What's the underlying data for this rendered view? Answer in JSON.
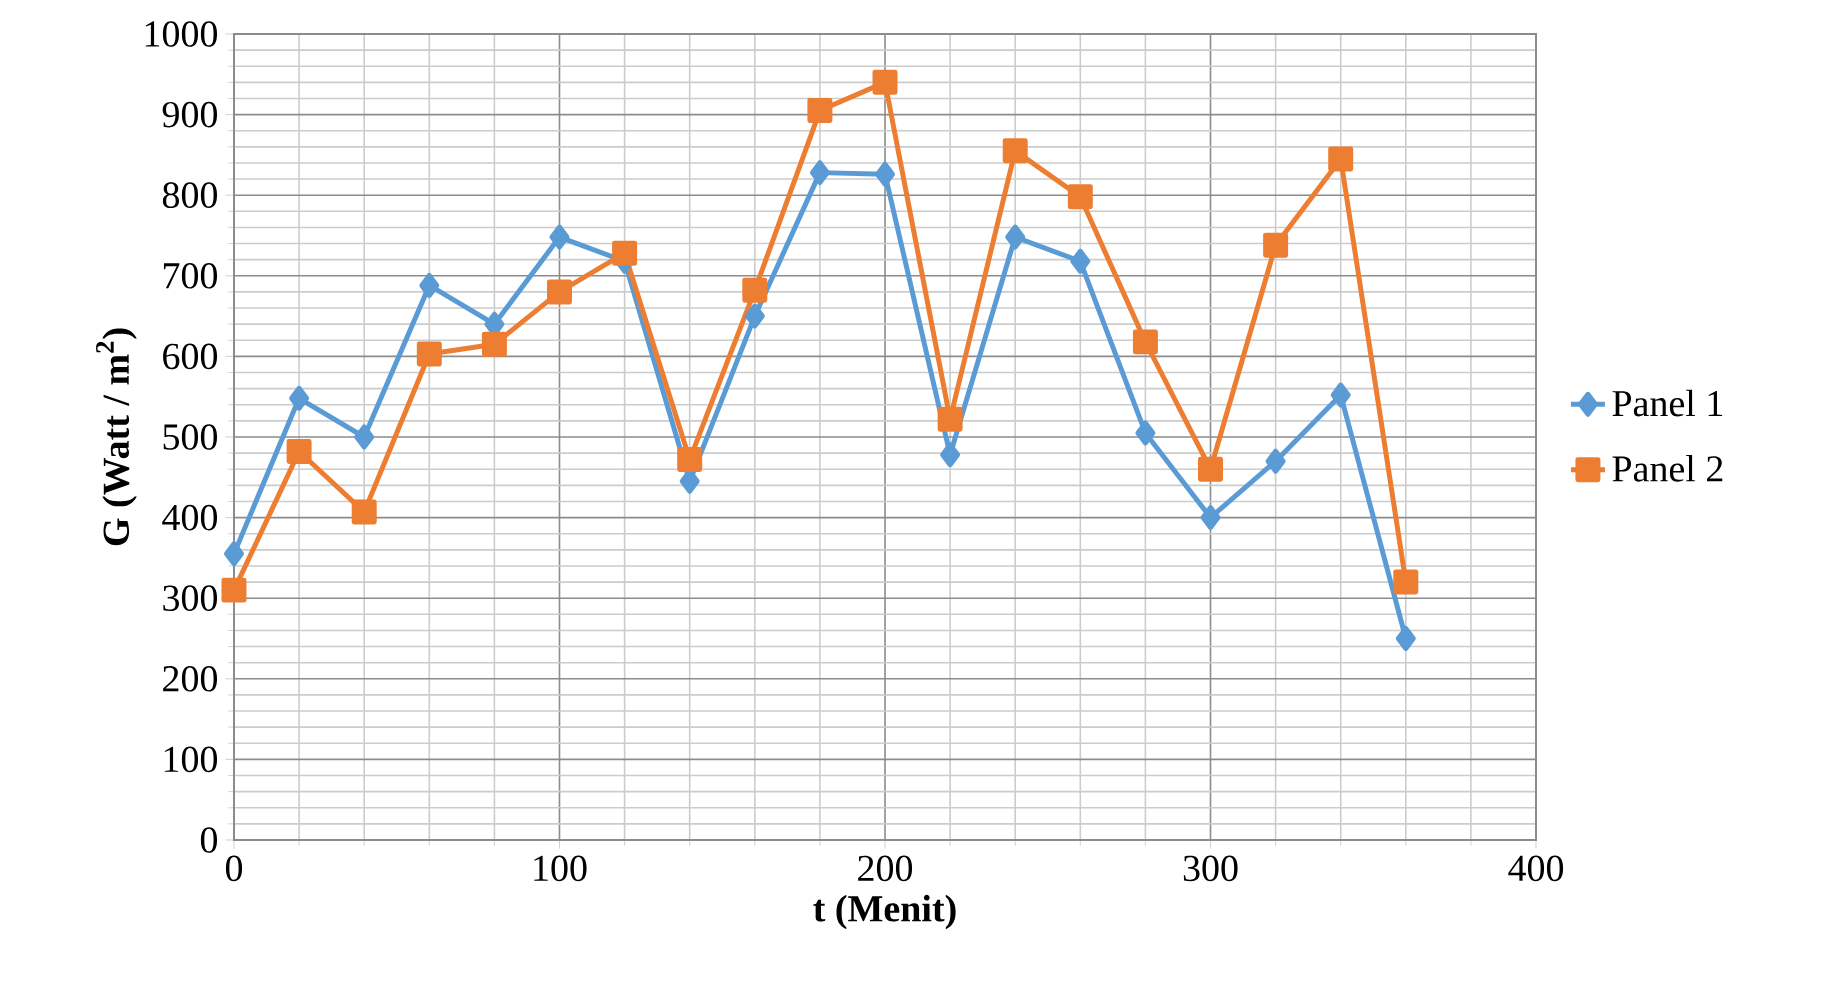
{
  "chart_data": {
    "type": "line",
    "xlabel": "t (Menit)",
    "ylabel": "G (Watt / m$^{2}$)",
    "x": [
      0,
      20,
      40,
      60,
      80,
      100,
      120,
      140,
      160,
      180,
      200,
      220,
      240,
      260,
      280,
      300,
      320,
      340,
      360
    ],
    "series": [
      {
        "name": "Panel 1",
        "color": "#5b9bd5",
        "marker": "diamond",
        "values": [
          355,
          548,
          500,
          688,
          640,
          748,
          718,
          445,
          650,
          828,
          826,
          478,
          748,
          718,
          505,
          400,
          470,
          552,
          250
        ]
      },
      {
        "name": "Panel 2",
        "color": "#ed7d31",
        "marker": "square",
        "values": [
          310,
          482,
          407,
          603,
          615,
          680,
          728,
          472,
          682,
          905,
          940,
          522,
          855,
          798,
          618,
          460,
          738,
          845,
          320
        ]
      }
    ],
    "xlim": [
      0,
      400
    ],
    "xticks": [
      0,
      100,
      200,
      300,
      400
    ],
    "ylim": [
      0,
      1000
    ],
    "yticks": [
      0,
      100,
      200,
      300,
      400,
      500,
      600,
      700,
      800,
      900,
      1000
    ],
    "grid": true,
    "legend": "right",
    "line_style": "solid"
  }
}
